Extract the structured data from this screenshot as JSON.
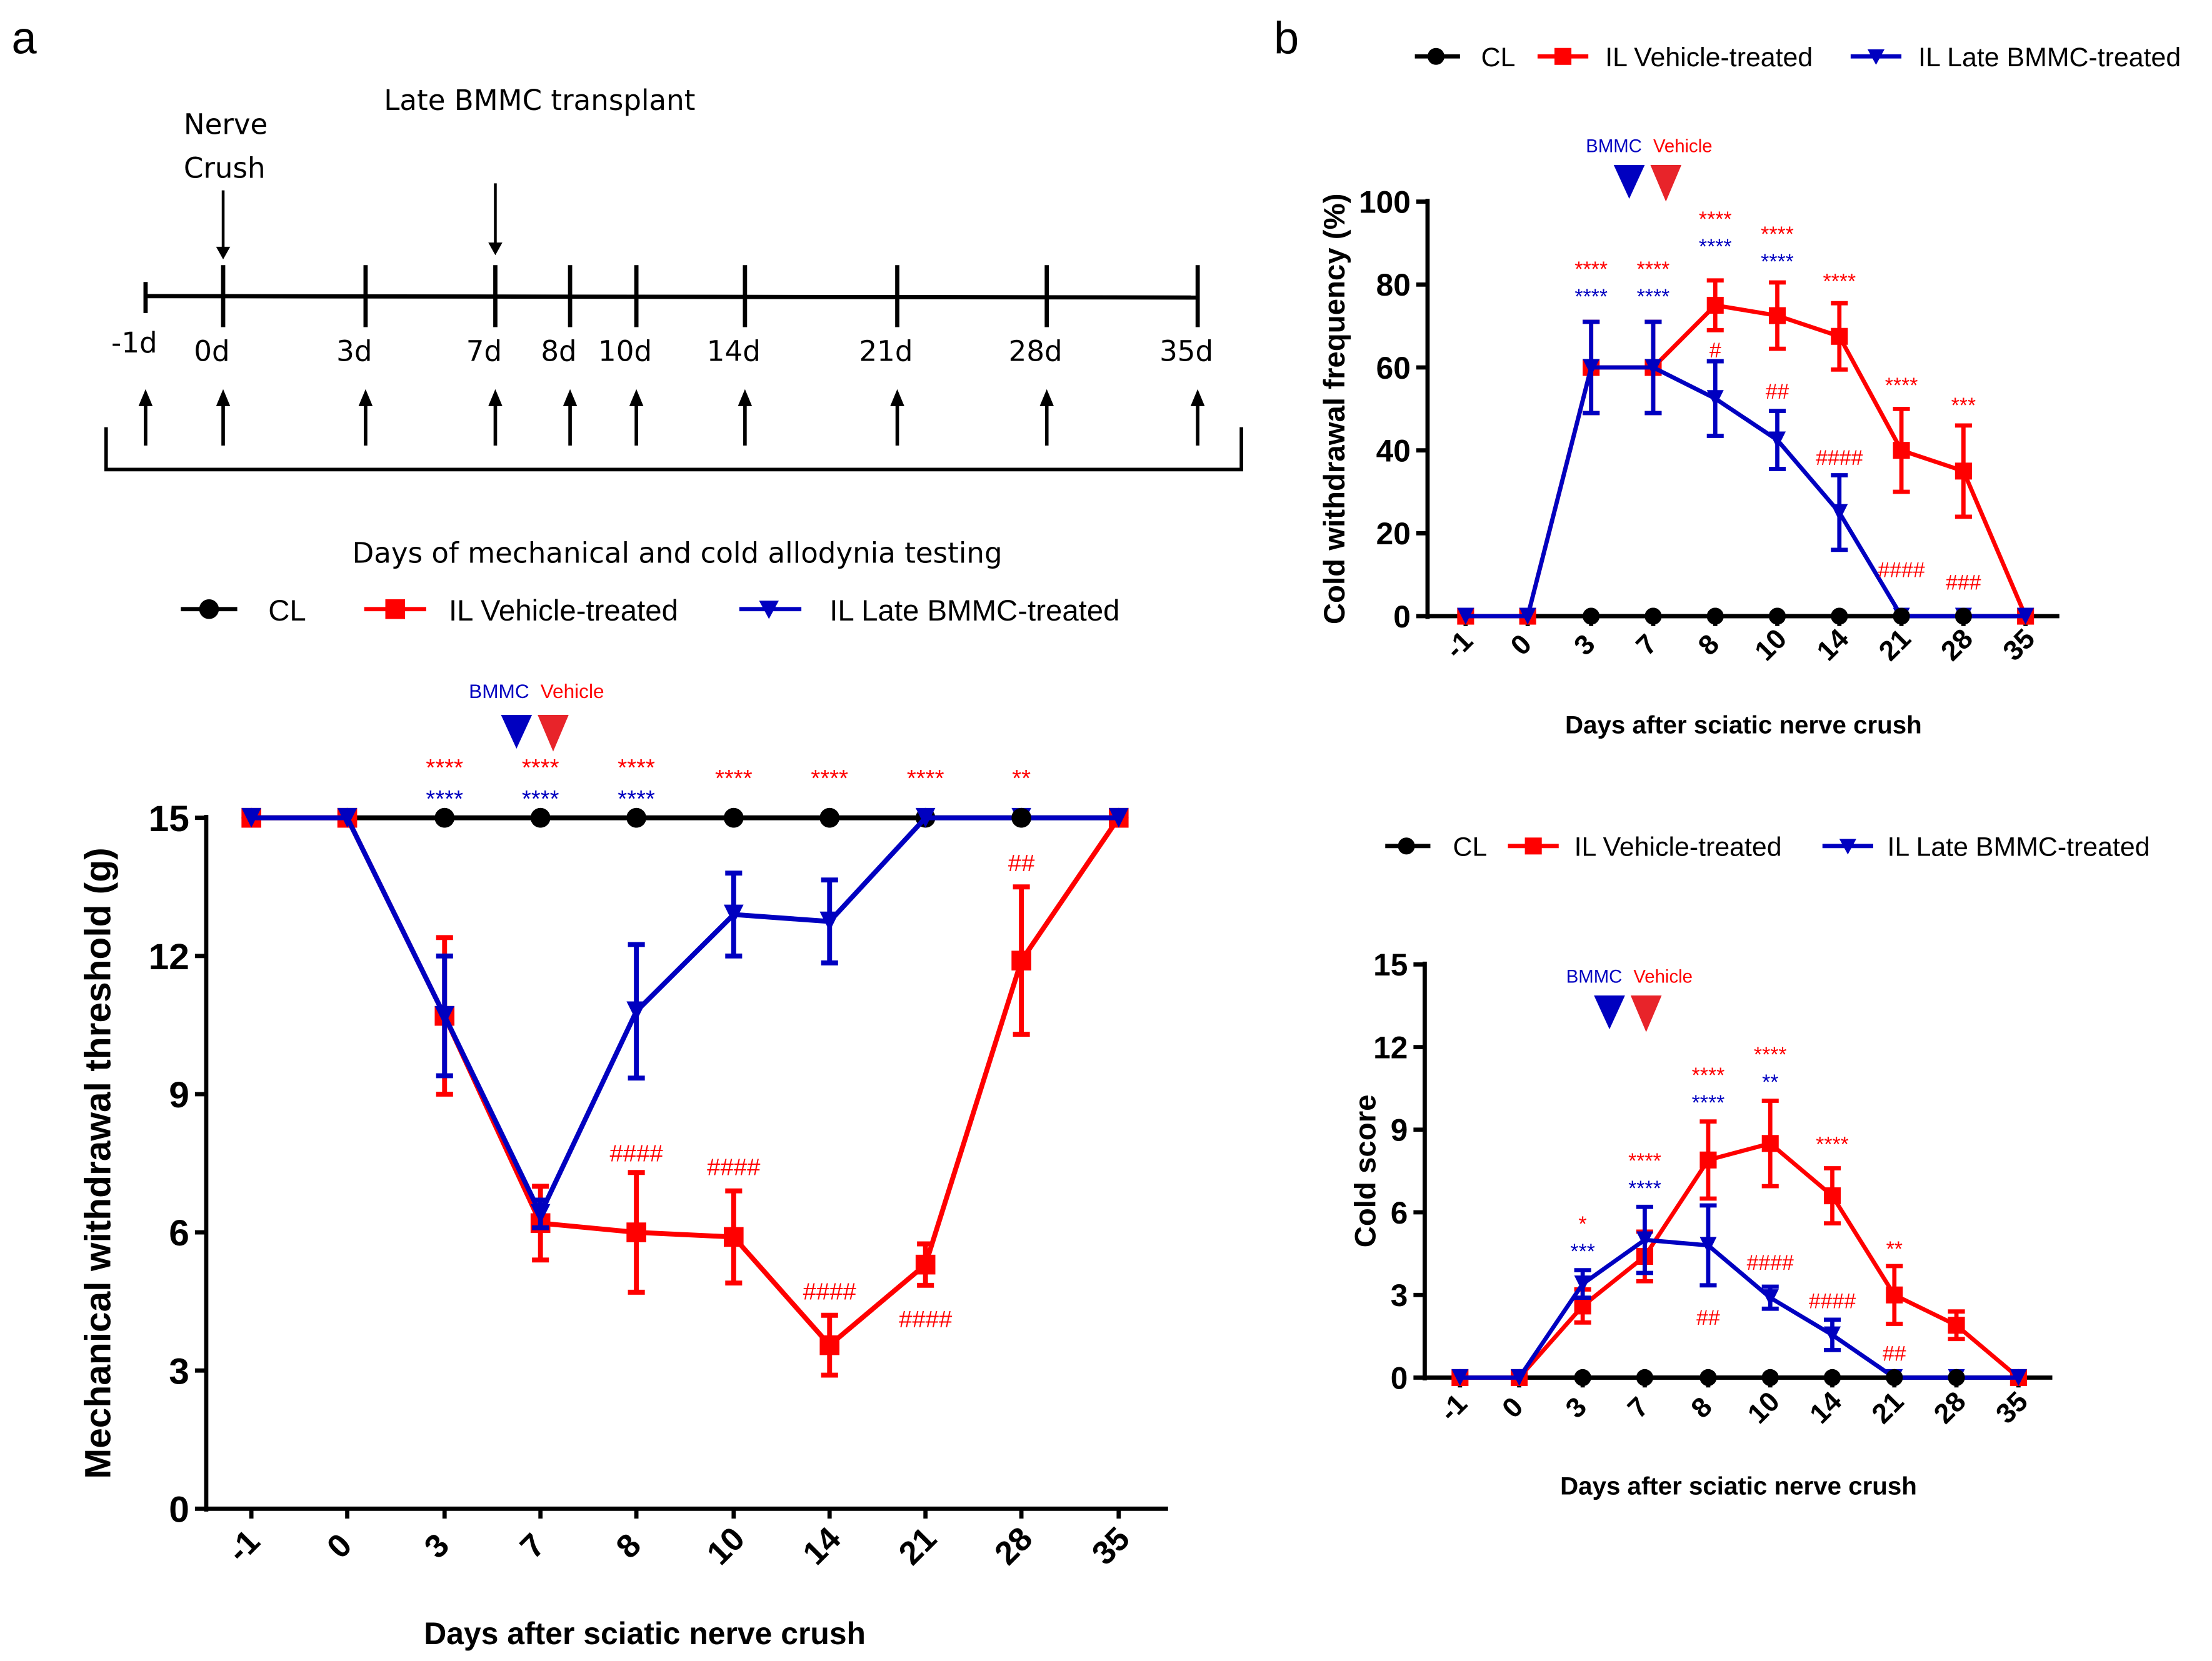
{
  "panel_labels": {
    "a": "a",
    "b": "b"
  },
  "timeline": {
    "days": [
      "-1d",
      "0d",
      "3d",
      "7d",
      "8d",
      "10d",
      "14d",
      "21d",
      "28d",
      "35d"
    ],
    "nerve_crush_line1": "Nerve",
    "nerve_crush_line2": "Crush",
    "transplant_label": "Late BMMC transplant",
    "testing_label": "Days of mechanical and cold allodynia testing"
  },
  "legend": {
    "cl": "CL",
    "vehicle": "IL Vehicle-treated",
    "bmmc": "IL Late BMMC-treated"
  },
  "treatment_markers": {
    "bmmc": "BMMC",
    "vehicle": "Vehicle"
  },
  "colors": {
    "cl": "#000000",
    "vehicle": "#ff0000",
    "bmmc": "#0000c0",
    "bmmc_arrow": "#0000c0",
    "vehicle_arrow": "#e8242a"
  },
  "chart_data": [
    {
      "type": "line",
      "title": "",
      "xlabel": "Days after sciatic nerve crush",
      "ylabel": "Mechanical withdrawal threshold (g)",
      "categories": [
        "-1",
        "0",
        "3",
        "7",
        "8",
        "10",
        "14",
        "21",
        "28",
        "35"
      ],
      "ylim": [
        0,
        15
      ],
      "yticks": [
        0,
        3,
        6,
        9,
        12,
        15
      ],
      "series": [
        {
          "name": "CL",
          "values": [
            15,
            15,
            15,
            15,
            15,
            15,
            15,
            15,
            15,
            15
          ],
          "errors": [
            0,
            0,
            0,
            0,
            0,
            0,
            0,
            0,
            0,
            0
          ]
        },
        {
          "name": "IL Vehicle-treated",
          "values": [
            15,
            15,
            10.7,
            6.2,
            6.0,
            5.9,
            3.55,
            5.3,
            11.9,
            15
          ],
          "errors": [
            0,
            0,
            1.7,
            0.8,
            1.3,
            1.0,
            0.65,
            0.45,
            1.6,
            0
          ]
        },
        {
          "name": "IL Late BMMC-treated",
          "values": [
            15,
            15,
            10.7,
            6.4,
            10.8,
            12.9,
            12.75,
            15,
            15,
            15
          ],
          "errors": [
            0,
            0,
            1.3,
            0.3,
            1.45,
            0.9,
            0.9,
            0,
            0,
            0
          ]
        }
      ],
      "annotations": [
        {
          "x": "3",
          "y": 15.95,
          "text": "****",
          "group": "vehicle"
        },
        {
          "x": "3",
          "y": 15.5,
          "text": "****",
          "group": "bmmc"
        },
        {
          "x": "7",
          "y": 15.95,
          "text": "****",
          "group": "vehicle"
        },
        {
          "x": "7",
          "y": 15.5,
          "text": "****",
          "group": "bmmc"
        },
        {
          "x": "8",
          "y": 15.95,
          "text": "****",
          "group": "vehicle"
        },
        {
          "x": "8",
          "y": 15.5,
          "text": "****",
          "group": "bmmc"
        },
        {
          "x": "10",
          "y": 15.95,
          "text": "****",
          "group": "vehicle"
        },
        {
          "x": "14",
          "y": 15.95,
          "text": "****",
          "group": "vehicle"
        },
        {
          "x": "21",
          "y": 15.95,
          "text": "****",
          "group": "vehicle"
        },
        {
          "x": "28",
          "y": 15.95,
          "text": "**",
          "group": "vehicle"
        },
        {
          "x": "8",
          "y": 7.8,
          "text": "####",
          "group": "vehicle"
        },
        {
          "x": "10",
          "y": 7.5,
          "text": "####",
          "group": "vehicle"
        },
        {
          "x": "14",
          "y": 4.8,
          "text": "####",
          "group": "vehicle"
        },
        {
          "x": "21",
          "y": 4.2,
          "text": "####",
          "group": "vehicle"
        },
        {
          "x": "28",
          "y": 14.1,
          "text": "##",
          "group": "vehicle"
        }
      ]
    },
    {
      "type": "line",
      "title": "",
      "xlabel": "Days after sciatic nerve crush",
      "ylabel": "Cold withdrawal frequency (%)",
      "categories": [
        "-1",
        "0",
        "3",
        "7",
        "8",
        "10",
        "14",
        "21",
        "28",
        "35"
      ],
      "ylim": [
        0,
        100
      ],
      "yticks": [
        0,
        20,
        40,
        60,
        80,
        100
      ],
      "series": [
        {
          "name": "CL",
          "values": [
            0,
            0,
            0,
            0,
            0,
            0,
            0,
            0,
            0,
            0
          ],
          "errors": [
            0,
            0,
            0,
            0,
            0,
            0,
            0,
            0,
            0,
            0
          ]
        },
        {
          "name": "IL Vehicle-treated",
          "values": [
            0,
            0,
            60,
            60,
            75,
            72.5,
            67.5,
            40,
            35,
            0
          ],
          "errors": [
            0,
            0,
            11,
            11,
            6,
            8,
            8,
            10,
            11,
            0
          ]
        },
        {
          "name": "IL Late BMMC-treated",
          "values": [
            0,
            0,
            60,
            60,
            52.5,
            42.5,
            25,
            0,
            0,
            0
          ],
          "errors": [
            0,
            0,
            11,
            11,
            9,
            7,
            9,
            0,
            0,
            0
          ]
        }
      ],
      "annotations": [
        {
          "x": "3",
          "y": 81.6,
          "text": "****",
          "group": "vehicle"
        },
        {
          "x": "3",
          "y": 77.9,
          "text": "****",
          "group": "bmmc"
        },
        {
          "x": "7",
          "y": 81.6,
          "text": "****",
          "group": "vehicle"
        },
        {
          "x": "7",
          "y": 77.9,
          "text": "****",
          "group": "bmmc"
        },
        {
          "x": "8",
          "y": 94.2,
          "text": "****",
          "group": "vehicle"
        },
        {
          "x": "8",
          "y": 90,
          "text": "****",
          "group": "bmmc"
        },
        {
          "x": "10",
          "y": 90.8,
          "text": "****",
          "group": "vehicle"
        },
        {
          "x": "10",
          "y": 86.4,
          "text": "****",
          "group": "bmmc"
        },
        {
          "x": "14",
          "y": 81.6,
          "text": "****",
          "group": "vehicle"
        },
        {
          "x": "21",
          "y": 56.5,
          "text": "****",
          "group": "vehicle"
        },
        {
          "x": "28",
          "y": 51.7,
          "text": "***",
          "group": "vehicle"
        },
        {
          "x": "8",
          "y": 65,
          "text": "#",
          "group": "vehicle"
        },
        {
          "x": "10",
          "y": 55,
          "text": "##",
          "group": "vehicle"
        },
        {
          "x": "14",
          "y": 39,
          "text": "####",
          "group": "vehicle"
        },
        {
          "x": "21",
          "y": 12,
          "text": "####",
          "group": "vehicle"
        },
        {
          "x": "28",
          "y": 9,
          "text": "###",
          "group": "vehicle"
        }
      ]
    },
    {
      "type": "line",
      "title": "",
      "xlabel": "Days after sciatic nerve crush",
      "ylabel": "Cold score",
      "categories": [
        "-1",
        "0",
        "3",
        "7",
        "8",
        "10",
        "14",
        "21",
        "28",
        "35"
      ],
      "ylim": [
        0,
        15
      ],
      "yticks": [
        0,
        3,
        6,
        9,
        12,
        15
      ],
      "series": [
        {
          "name": "CL",
          "values": [
            0,
            0,
            0,
            0,
            0,
            0,
            0,
            0,
            0,
            0
          ],
          "errors": [
            0,
            0,
            0,
            0,
            0,
            0,
            0,
            0,
            0,
            0
          ]
        },
        {
          "name": "IL Vehicle-treated",
          "values": [
            0,
            0,
            2.6,
            4.4,
            7.9,
            8.5,
            6.6,
            3.0,
            1.9,
            0
          ],
          "errors": [
            0,
            0,
            0.6,
            0.9,
            1.4,
            1.55,
            1.0,
            1.05,
            0.5,
            0
          ]
        },
        {
          "name": "IL Late BMMC-treated",
          "values": [
            0,
            0,
            3.4,
            5.0,
            4.8,
            2.9,
            1.55,
            0,
            0,
            0
          ],
          "errors": [
            0,
            0,
            0.5,
            1.2,
            1.45,
            0.4,
            0.55,
            0,
            0,
            0
          ]
        }
      ],
      "annotations": [
        {
          "x": "3",
          "y": 5.4,
          "text": "*",
          "group": "vehicle"
        },
        {
          "x": "3",
          "y": 4.7,
          "text": "***",
          "group": "bmmc"
        },
        {
          "x": "7",
          "y": 7.6,
          "text": "****",
          "group": "vehicle"
        },
        {
          "x": "7",
          "y": 7.0,
          "text": "****",
          "group": "bmmc"
        },
        {
          "x": "8",
          "y": 10.7,
          "text": "****",
          "group": "vehicle"
        },
        {
          "x": "8",
          "y": 10.1,
          "text": "****",
          "group": "bmmc"
        },
        {
          "x": "10",
          "y": 11.5,
          "text": "****",
          "group": "vehicle"
        },
        {
          "x": "10",
          "y": 10.85,
          "text": "**",
          "group": "bmmc"
        },
        {
          "x": "14",
          "y": 8.6,
          "text": "****",
          "group": "vehicle"
        },
        {
          "x": "21",
          "y": 4.8,
          "text": "**",
          "group": "vehicle"
        },
        {
          "x": "8",
          "y": 2.3,
          "text": "##",
          "group": "vehicle"
        },
        {
          "x": "10",
          "y": 4.3,
          "text": "####",
          "group": "vehicle"
        },
        {
          "x": "14",
          "y": 2.9,
          "text": "####",
          "group": "vehicle"
        },
        {
          "x": "21",
          "y": 1.0,
          "text": "##",
          "group": "vehicle"
        }
      ]
    }
  ]
}
